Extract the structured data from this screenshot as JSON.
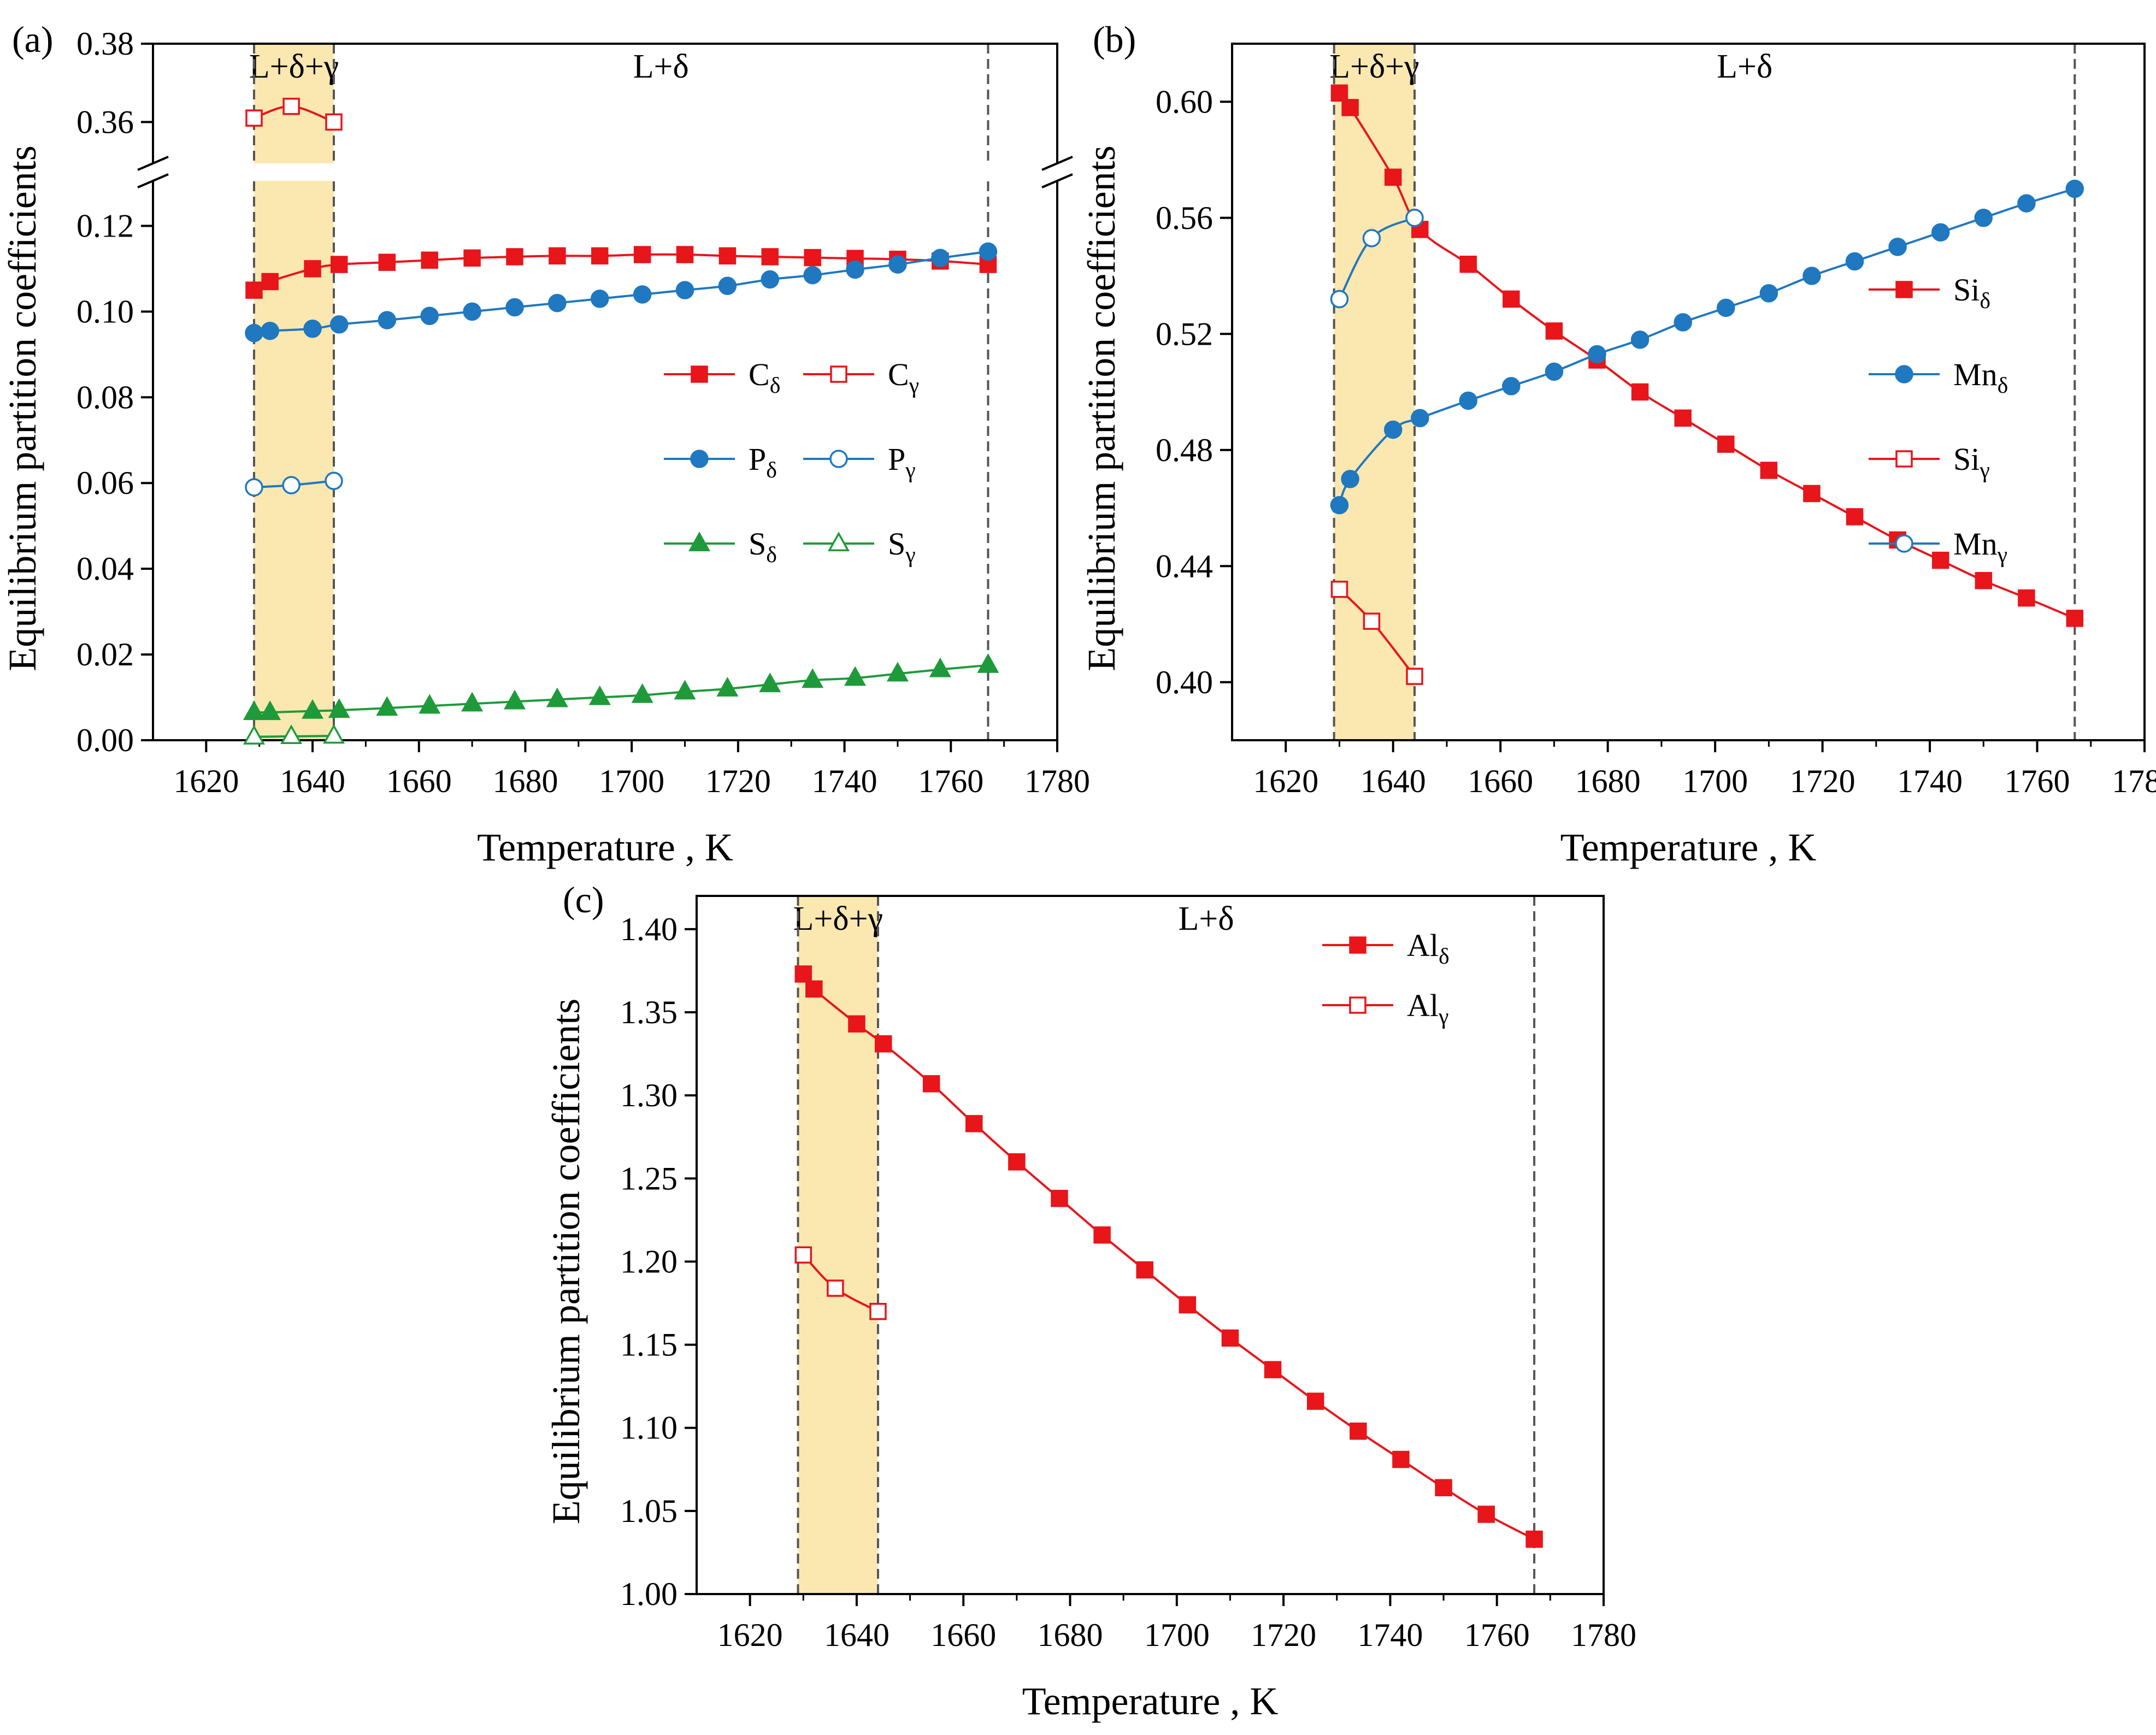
{
  "chart_data": [
    {
      "type": "line",
      "panel": "(a)",
      "xlabel": "Temperature , K",
      "ylabel": "Equilibrium partition coefficients",
      "xlim": [
        1610,
        1780
      ],
      "xticks": [
        1620,
        1640,
        1660,
        1680,
        1700,
        1720,
        1740,
        1760,
        1780
      ],
      "ylim": [
        0,
        0.13
      ],
      "yticks": [
        "0.00",
        "0.02",
        "0.04",
        "0.06",
        "0.08",
        "0.10",
        "0.12"
      ],
      "broken_axis_upper": {
        "ylim": [
          0.35,
          0.38
        ],
        "yticks": [
          "0.36",
          "0.38"
        ]
      },
      "phase_regions": [
        {
          "label": "L+δ+γ",
          "from": 1629,
          "to": 1644,
          "shaded": true,
          "shade_color": "#fbe8b0"
        },
        {
          "label": "L+δ",
          "from": 1644,
          "to": 1767,
          "shaded": false
        }
      ],
      "series": [
        {
          "name": "C",
          "sub": "δ",
          "color": "#e8151b",
          "marker": "square",
          "filled": true,
          "x": [
            1629,
            1632,
            1640,
            1645,
            1654,
            1662,
            1670,
            1678,
            1686,
            1694,
            1702,
            1710,
            1718,
            1726,
            1734,
            1742,
            1750,
            1758,
            1767
          ],
          "y": [
            0.105,
            0.107,
            0.11,
            0.111,
            0.1115,
            0.112,
            0.1125,
            0.1128,
            0.113,
            0.113,
            0.1133,
            0.1133,
            0.113,
            0.1128,
            0.1126,
            0.1124,
            0.1122,
            0.1118,
            0.111
          ]
        },
        {
          "name": "C",
          "sub": "γ",
          "color": "#e8151b",
          "marker": "square",
          "filled": false,
          "x": [
            1629,
            1636,
            1644
          ],
          "y": [
            0.361,
            0.364,
            0.36
          ]
        },
        {
          "name": "P",
          "sub": "δ",
          "color": "#1f78c0",
          "marker": "circle",
          "filled": true,
          "x": [
            1629,
            1632,
            1640,
            1645,
            1654,
            1662,
            1670,
            1678,
            1686,
            1694,
            1702,
            1710,
            1718,
            1726,
            1734,
            1742,
            1750,
            1758,
            1767
          ],
          "y": [
            0.095,
            0.0955,
            0.096,
            0.097,
            0.098,
            0.099,
            0.1,
            0.101,
            0.102,
            0.103,
            0.104,
            0.105,
            0.106,
            0.1075,
            0.1085,
            0.1098,
            0.111,
            0.1125,
            0.114
          ]
        },
        {
          "name": "P",
          "sub": "γ",
          "color": "#1f78c0",
          "marker": "circle",
          "filled": false,
          "x": [
            1629,
            1636,
            1644
          ],
          "y": [
            0.059,
            0.0595,
            0.0605
          ]
        },
        {
          "name": "S",
          "sub": "δ",
          "color": "#1f9a3a",
          "marker": "triangle",
          "filled": true,
          "x": [
            1629,
            1632,
            1640,
            1645,
            1654,
            1662,
            1670,
            1678,
            1686,
            1694,
            1702,
            1710,
            1718,
            1726,
            1734,
            1742,
            1750,
            1758,
            1767
          ],
          "y": [
            0.0065,
            0.0065,
            0.0068,
            0.007,
            0.0075,
            0.008,
            0.0085,
            0.009,
            0.0095,
            0.01,
            0.0105,
            0.0113,
            0.012,
            0.013,
            0.014,
            0.0145,
            0.0155,
            0.0165,
            0.0175
          ]
        },
        {
          "name": "S",
          "sub": "γ",
          "color": "#1f9a3a",
          "marker": "triangle",
          "filled": false,
          "x": [
            1629,
            1636,
            1644
          ],
          "y": [
            0.0008,
            0.0009,
            0.001
          ]
        }
      ]
    },
    {
      "type": "line",
      "panel": "(b)",
      "xlabel": "Temperature , K",
      "ylabel": "Equilibrium partition coefficients",
      "xlim": [
        1610,
        1780
      ],
      "xticks": [
        1620,
        1640,
        1660,
        1680,
        1700,
        1720,
        1740,
        1760,
        1780
      ],
      "ylim": [
        0.38,
        0.62
      ],
      "yticks": [
        "0.40",
        "0.44",
        "0.48",
        "0.52",
        "0.56",
        "0.60"
      ],
      "phase_regions": [
        {
          "label": "L+δ+γ",
          "from": 1629,
          "to": 1644,
          "shaded": true,
          "shade_color": "#fbe8b0"
        },
        {
          "label": "L+δ",
          "from": 1644,
          "to": 1767,
          "shaded": false
        }
      ],
      "series": [
        {
          "name": "Si",
          "sub": "δ",
          "color": "#e8151b",
          "marker": "square",
          "filled": true,
          "x": [
            1630,
            1632,
            1640,
            1645,
            1654,
            1662,
            1670,
            1678,
            1686,
            1694,
            1702,
            1710,
            1718,
            1726,
            1734,
            1742,
            1750,
            1758,
            1767
          ],
          "y": [
            0.603,
            0.598,
            0.574,
            0.556,
            0.544,
            0.532,
            0.521,
            0.511,
            0.5,
            0.491,
            0.482,
            0.473,
            0.465,
            0.457,
            0.449,
            0.442,
            0.435,
            0.429,
            0.422
          ]
        },
        {
          "name": "Mn",
          "sub": "δ",
          "color": "#1f78c0",
          "marker": "circle",
          "filled": true,
          "x": [
            1630,
            1632,
            1640,
            1645,
            1654,
            1662,
            1670,
            1678,
            1686,
            1694,
            1702,
            1710,
            1718,
            1726,
            1734,
            1742,
            1750,
            1758,
            1767
          ],
          "y": [
            0.461,
            0.47,
            0.487,
            0.491,
            0.497,
            0.502,
            0.507,
            0.513,
            0.518,
            0.524,
            0.529,
            0.534,
            0.54,
            0.545,
            0.55,
            0.555,
            0.56,
            0.565,
            0.57
          ]
        },
        {
          "name": "Si",
          "sub": "γ",
          "color": "#e8151b",
          "marker": "square",
          "filled": false,
          "x": [
            1630,
            1636,
            1644
          ],
          "y": [
            0.432,
            0.421,
            0.402
          ]
        },
        {
          "name": "Mn",
          "sub": "γ",
          "color": "#1f78c0",
          "marker": "circle",
          "filled": false,
          "x": [
            1630,
            1636,
            1644
          ],
          "y": [
            0.532,
            0.553,
            0.56
          ]
        }
      ]
    },
    {
      "type": "line",
      "panel": "(c)",
      "xlabel": "Temperature , K",
      "ylabel": "Equilibrium partition coefficients",
      "xlim": [
        1610,
        1780
      ],
      "xticks": [
        1620,
        1640,
        1660,
        1680,
        1700,
        1720,
        1740,
        1760,
        1780
      ],
      "ylim": [
        1.0,
        1.42
      ],
      "yticks": [
        "1.00",
        "1.05",
        "1.10",
        "1.15",
        "1.20",
        "1.25",
        "1.30",
        "1.35",
        "1.40"
      ],
      "phase_regions": [
        {
          "label": "L+δ+γ",
          "from": 1629,
          "to": 1644,
          "shaded": true,
          "shade_color": "#fbe8b0"
        },
        {
          "label": "L+δ",
          "from": 1644,
          "to": 1767,
          "shaded": false
        }
      ],
      "series": [
        {
          "name": "Al",
          "sub": "δ",
          "color": "#e8151b",
          "marker": "square",
          "filled": true,
          "x": [
            1630,
            1632,
            1640,
            1645,
            1654,
            1662,
            1670,
            1678,
            1686,
            1694,
            1702,
            1710,
            1718,
            1726,
            1734,
            1742,
            1750,
            1758,
            1767
          ],
          "y": [
            1.373,
            1.364,
            1.343,
            1.331,
            1.307,
            1.283,
            1.26,
            1.238,
            1.216,
            1.195,
            1.174,
            1.154,
            1.135,
            1.116,
            1.098,
            1.081,
            1.064,
            1.048,
            1.033
          ]
        },
        {
          "name": "Al",
          "sub": "γ",
          "color": "#e8151b",
          "marker": "square",
          "filled": false,
          "x": [
            1630,
            1636,
            1644
          ],
          "y": [
            1.204,
            1.184,
            1.17
          ]
        }
      ]
    }
  ]
}
